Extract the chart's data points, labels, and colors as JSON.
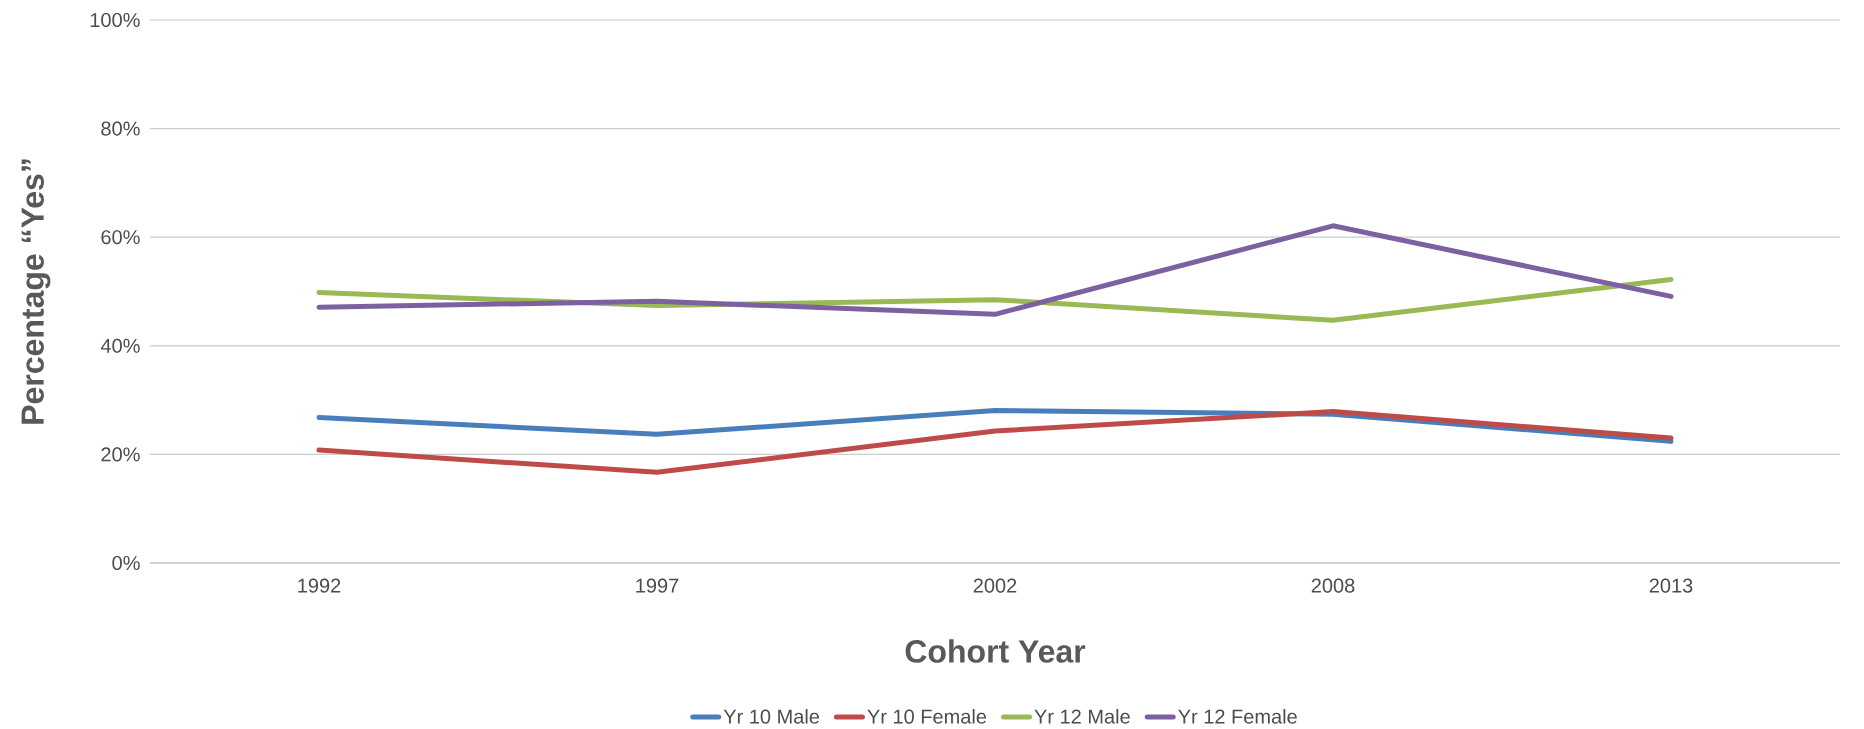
{
  "chart_data": {
    "type": "line",
    "xlabel": "Cohort Year",
    "ylabel": "Percentage “Yes”",
    "categories": [
      "1992",
      "1997",
      "2002",
      "2008",
      "2013"
    ],
    "series": [
      {
        "name": "Yr 10 Male",
        "color": "#4a7ebb",
        "values": [
          26.8,
          23.7,
          28.1,
          27.4,
          22.4
        ]
      },
      {
        "name": "Yr 10 Female",
        "color": "#be4b48",
        "values": [
          20.8,
          16.7,
          24.3,
          27.9,
          23.0
        ]
      },
      {
        "name": "Yr 12 Male",
        "color": "#98b954",
        "values": [
          49.8,
          47.4,
          48.5,
          44.7,
          52.2
        ]
      },
      {
        "name": "Yr 12 Female",
        "color": "#7d60a0",
        "values": [
          47.1,
          48.2,
          45.8,
          62.1,
          49.1
        ]
      }
    ],
    "ylim": [
      0,
      100
    ],
    "yticks": [
      {
        "value": 0,
        "label": "0%"
      },
      {
        "value": 20,
        "label": "20%"
      },
      {
        "value": 40,
        "label": "40%"
      },
      {
        "value": 60,
        "label": "60%"
      },
      {
        "value": 80,
        "label": "80%"
      },
      {
        "value": 100,
        "label": "100%"
      }
    ],
    "grid": "y",
    "legend": "bottom",
    "marker": "none",
    "line_style": "solid"
  }
}
